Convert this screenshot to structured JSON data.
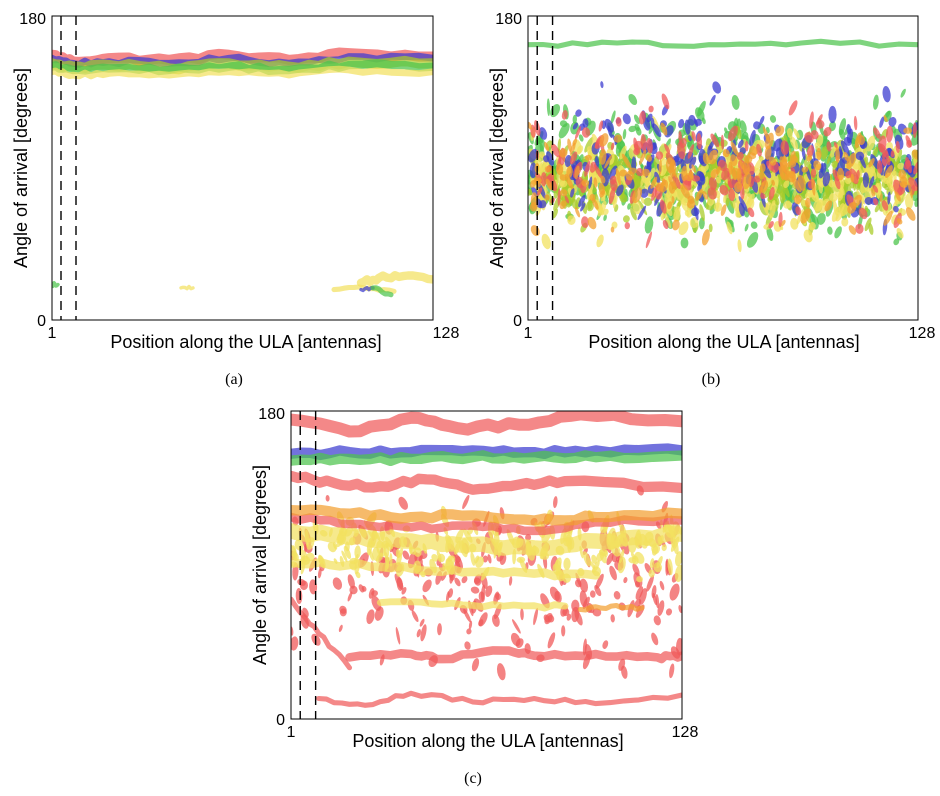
{
  "figure": {
    "captions": [
      "(a)",
      "(b)",
      "(c)"
    ]
  },
  "chart_data": [
    {
      "type": "heatmap",
      "panel": "a",
      "xlabel": "Position along the ULA [antennas]",
      "ylabel": "Angle of arrival [degrees]",
      "xtick_labels": [
        "1",
        "128"
      ],
      "ytick_labels": [
        "0",
        "180"
      ],
      "xlim": [
        1,
        128
      ],
      "ylim": [
        0,
        180
      ],
      "dashed_vlines_x": [
        4,
        9
      ],
      "colors": {
        "red": "#f05a5a",
        "blue": "#3c3cd0",
        "green": "#4cc44c",
        "yellow": "#f2e160",
        "orange": "#f3a030",
        "olive": "#a9cc2a"
      },
      "series": [
        {
          "color": "red",
          "x": [
            1,
            8,
            20,
            40,
            60,
            80,
            100,
            128
          ],
          "y": [
            157,
            153,
            155,
            154,
            157,
            154,
            158,
            156
          ],
          "band_width": 6
        },
        {
          "color": "blue",
          "x": [
            1,
            8,
            20,
            40,
            60,
            80,
            100,
            128
          ],
          "y": [
            155,
            152,
            153,
            152,
            155,
            152,
            156,
            155
          ],
          "band_width": 4
        },
        {
          "color": "olive",
          "x": [
            1,
            8,
            20,
            40,
            60,
            80,
            100,
            128
          ],
          "y": [
            152,
            150,
            151,
            149,
            152,
            150,
            153,
            152
          ],
          "band_width": 6
        },
        {
          "color": "green",
          "x": [
            1,
            8,
            20,
            40,
            60,
            80,
            100,
            128
          ],
          "y": [
            150,
            148,
            149,
            148,
            150,
            148,
            151,
            150
          ],
          "band_width": 5
        },
        {
          "color": "yellow",
          "x": [
            1,
            8,
            20,
            40,
            60,
            80,
            100,
            128
          ],
          "y": [
            147,
            145,
            146,
            145,
            147,
            145,
            148,
            147
          ],
          "band_width": 4
        },
        {
          "color": "yellow",
          "x": [
            104,
            110,
            118,
            128
          ],
          "y": [
            22,
            25,
            26,
            24
          ],
          "band_width": 5
        },
        {
          "color": "yellow",
          "x": [
            95,
            105,
            115
          ],
          "y": [
            18,
            19,
            17
          ],
          "band_width": 3
        },
        {
          "color": "blue",
          "x": [
            104,
            108
          ],
          "y": [
            18,
            19
          ],
          "band_width": 2
        },
        {
          "color": "green",
          "x": [
            108,
            114
          ],
          "y": [
            19,
            15
          ],
          "band_width": 3
        },
        {
          "color": "yellow",
          "x": [
            44,
            48
          ],
          "y": [
            19,
            19
          ],
          "band_width": 2
        },
        {
          "color": "green",
          "x": [
            1,
            3
          ],
          "y": [
            21,
            21
          ],
          "band_width": 2
        }
      ]
    },
    {
      "type": "heatmap",
      "panel": "b",
      "xlabel": "Position along the ULA [antennas]",
      "ylabel": "Angle of arrival [degrees]",
      "xtick_labels": [
        "1",
        "128"
      ],
      "ytick_labels": [
        "0",
        "180"
      ],
      "xlim": [
        1,
        128
      ],
      "ylim": [
        0,
        180
      ],
      "dashed_vlines_x": [
        4,
        9
      ],
      "colors": {
        "red": "#f05a5a",
        "blue": "#3c3cd0",
        "green": "#4cc44c",
        "yellow": "#f2e160",
        "orange": "#f3a030",
        "olive": "#a9cc2a"
      },
      "scatter_clouds": [
        {
          "color": "green",
          "center": 90,
          "spread": 55,
          "density": 1.0
        },
        {
          "color": "olive",
          "center": 82,
          "spread": 38,
          "density": 1.0
        },
        {
          "color": "yellow",
          "center": 80,
          "spread": 45,
          "density": 0.7
        },
        {
          "color": "blue",
          "center": 95,
          "spread": 60,
          "density": 0.45
        },
        {
          "color": "red",
          "center": 90,
          "spread": 60,
          "density": 0.35
        },
        {
          "color": "orange",
          "center": 85,
          "spread": 50,
          "density": 0.35
        }
      ],
      "series": [
        {
          "color": "green",
          "x": [
            1,
            30,
            60,
            90,
            128
          ],
          "y": [
            163,
            164,
            163,
            164,
            163
          ],
          "band_width": 3
        }
      ]
    },
    {
      "type": "heatmap",
      "panel": "c",
      "xlabel": "Position along the ULA [antennas]",
      "ylabel": "Angle of arrival [degrees]",
      "xtick_labels": [
        "1",
        "128"
      ],
      "ytick_labels": [
        "0",
        "180"
      ],
      "xlim": [
        1,
        128
      ],
      "ylim": [
        0,
        180
      ],
      "dashed_vlines_x": [
        4,
        9
      ],
      "colors": {
        "red": "#f05a5a",
        "blue": "#3c3cd0",
        "green": "#4cc44c",
        "yellow": "#f2e160",
        "orange": "#f3a030",
        "olive": "#a9cc2a"
      },
      "series": [
        {
          "color": "blue",
          "x": [
            1,
            20,
            40,
            60,
            80,
            100,
            128
          ],
          "y": [
            155,
            156,
            156,
            157,
            156,
            157,
            157
          ],
          "band_width": 6
        },
        {
          "color": "green",
          "x": [
            1,
            20,
            40,
            60,
            80,
            100,
            128
          ],
          "y": [
            151,
            152,
            152,
            153,
            153,
            153,
            154
          ],
          "band_width": 6
        },
        {
          "color": "red",
          "x": [
            1,
            20,
            40,
            55,
            75,
            95,
            128
          ],
          "y": [
            175,
            168,
            176,
            170,
            172,
            178,
            174
          ],
          "band_width": 7
        },
        {
          "color": "red",
          "x": [
            1,
            15,
            30,
            45,
            60,
            75,
            90,
            128
          ],
          "y": [
            142,
            138,
            136,
            140,
            134,
            137,
            139,
            135
          ],
          "band_width": 6
        },
        {
          "color": "red",
          "x": [
            1,
            20,
            40,
            60,
            80,
            100,
            128
          ],
          "y": [
            118,
            114,
            112,
            113,
            110,
            115,
            116
          ],
          "band_width": 5
        },
        {
          "color": "orange",
          "x": [
            1,
            20,
            40,
            60,
            80,
            100,
            128
          ],
          "y": [
            122,
            120,
            118,
            119,
            116,
            118,
            120
          ],
          "band_width": 6
        },
        {
          "color": "yellow",
          "x": [
            1,
            20,
            40,
            60,
            80,
            100,
            128
          ],
          "y": [
            110,
            106,
            104,
            102,
            100,
            104,
            108
          ],
          "band_width": 9
        },
        {
          "color": "yellow",
          "x": [
            1,
            20,
            40,
            60,
            80,
            100
          ],
          "y": [
            92,
            90,
            88,
            86,
            85,
            84
          ],
          "band_width": 5
        },
        {
          "color": "yellow",
          "x": [
            30,
            50,
            70,
            90
          ],
          "y": [
            68,
            67,
            66,
            66
          ],
          "band_width": 4
        },
        {
          "color": "orange",
          "x": [
            95,
            105,
            115
          ],
          "y": [
            64,
            66,
            65
          ],
          "band_width": 3
        },
        {
          "color": "red",
          "x": [
            1,
            10,
            20
          ],
          "y": [
            70,
            50,
            30
          ],
          "band_width": 3
        },
        {
          "color": "red",
          "x": [
            20,
            40,
            50,
            70,
            80,
            100,
            120,
            128
          ],
          "y": [
            36,
            38,
            35,
            40,
            37,
            38,
            36,
            37
          ],
          "band_width": 5
        },
        {
          "color": "red",
          "x": [
            10,
            25,
            40,
            60,
            80,
            100,
            128
          ],
          "y": [
            12,
            8,
            15,
            10,
            12,
            9,
            14
          ],
          "band_width": 3
        }
      ],
      "scatter_clouds": [
        {
          "color": "red",
          "center": 80,
          "spread": 80,
          "density": 0.6
        },
        {
          "color": "yellow",
          "center": 100,
          "spread": 30,
          "density": 0.5
        }
      ]
    }
  ]
}
